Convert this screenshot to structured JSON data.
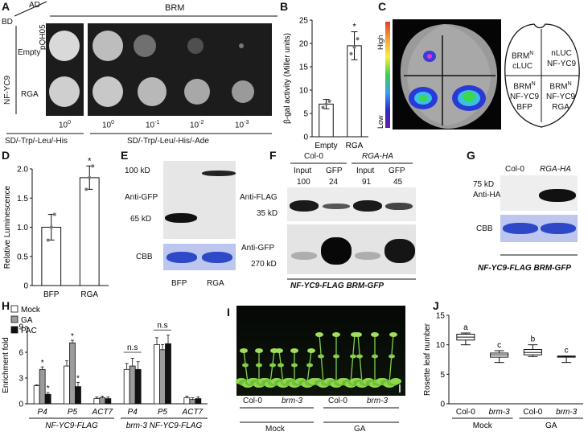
{
  "panels": {
    "A": {
      "letter": "A",
      "ad_label": "AD",
      "bd_label": "BD",
      "pqh05_label": "pQH05",
      "brm_label": "BRM",
      "nfyc9_label": "NF-YC9",
      "rows": [
        "Empty",
        "RGA"
      ],
      "dilutions": [
        "10",
        "10",
        "10",
        "10",
        "10"
      ],
      "dilution_exps": [
        "0",
        "0",
        "-1",
        "-2",
        "-3"
      ],
      "media": [
        "SD/-Trp/-Leu/-His",
        "SD/-Trp/-Leu/-His/-Ade"
      ]
    },
    "B": {
      "letter": "B",
      "chart_data": {
        "type": "bar",
        "categories": [
          "Empty",
          "RGA"
        ],
        "values": [
          7,
          19.5
        ],
        "errors": [
          1,
          3
        ],
        "points": [
          [
            6.3,
            7.0,
            7.6
          ],
          [
            17.8,
            19.2,
            21.0
          ]
        ],
        "ylabel": "β-gal activity (Miller units)",
        "ylim": [
          0,
          25
        ],
        "yticks": [
          0,
          5,
          10,
          15,
          20,
          25
        ],
        "significance": [
          "",
          "*"
        ]
      }
    },
    "C": {
      "letter": "C",
      "scale_high": "High",
      "scale_low": "Low",
      "map": {
        "tl": [
          "BRM",
          "N",
          "cLUC"
        ],
        "tr": [
          "nLUC",
          "NF-YC9"
        ],
        "bl": [
          "BRM",
          "N",
          "NF-YC9",
          "BFP"
        ],
        "br": [
          "BRM",
          "N",
          "NF-YC9",
          "RGA"
        ]
      }
    },
    "D": {
      "letter": "D",
      "chart_data": {
        "type": "bar",
        "categories": [
          "BFP",
          "RGA"
        ],
        "values": [
          1.0,
          1.85
        ],
        "errors": [
          0.22,
          0.2
        ],
        "points": [
          [
            0.78,
            1.0,
            1.22
          ],
          [
            1.65,
            1.85,
            2.05
          ]
        ],
        "ylabel": "Relative Luminescence",
        "ylim": [
          0,
          2.0
        ],
        "yticks": [
          0,
          0.5,
          1.0,
          1.5,
          2.0
        ],
        "ytick_labels": [
          "0",
          "0.5",
          "1.0",
          "1.5",
          "2.0"
        ],
        "significance": [
          "",
          "*"
        ]
      }
    },
    "E": {
      "letter": "E",
      "mw_top": "100 kD",
      "mw_bottom": "65 kD",
      "antibody": "Anti-GFP",
      "cbb": "CBB",
      "lanes": [
        "BFP",
        "RGA"
      ]
    },
    "F": {
      "letter": "F",
      "groups": [
        "Col-0",
        "RGA-HA"
      ],
      "lanes": [
        "Input",
        "GFP",
        "Input",
        "GFP"
      ],
      "quant": [
        "100",
        "24",
        "91",
        "45"
      ],
      "flag_label": "Anti-FLAG",
      "flag_mw": "35 kD",
      "gfp_label": "Anti-GFP",
      "gfp_mw": "270 kD",
      "genotype": "NF-YC9-FLAG BRM-GFP"
    },
    "G": {
      "letter": "G",
      "groups": [
        "Col-0",
        "RGA-HA"
      ],
      "mw": "75 kD",
      "antibody": "Anti-HA",
      "cbb": "CBB",
      "genotype": "NF-YC9-FLAG BRM-GFP"
    },
    "H": {
      "letter": "H",
      "chart_data": {
        "type": "bar",
        "ylabel": "Enrichment fold",
        "ylim": [
          0,
          9
        ],
        "yticks": [
          0,
          3,
          6,
          9
        ],
        "categories": [
          "P4",
          "P5",
          "ACT7",
          "P4",
          "P5",
          "ACT7"
        ],
        "series": [
          {
            "name": "Mock",
            "values": [
              2.1,
              4.4,
              0.6,
              4.0,
              6.9,
              0.7
            ],
            "errors": [
              0.1,
              0.6,
              0.2,
              0.7,
              0.8,
              0.2
            ],
            "color": "#ffffff"
          },
          {
            "name": "GA",
            "values": [
              4.0,
              7.1,
              0.7,
              4.4,
              6.3,
              0.5
            ],
            "errors": [
              0.3,
              0.3,
              0.2,
              0.9,
              0.6,
              0.2
            ],
            "color": "#9b9b9b"
          },
          {
            "name": "PAC",
            "values": [
              1.1,
              2.0,
              0.6,
              4.0,
              7.0,
              0.6
            ],
            "errors": [
              0.2,
              0.5,
              0.2,
              0.9,
              1.0,
              0.2
            ],
            "color": "#111111"
          }
        ],
        "stars": [
          [
            "",
            "*",
            "*"
          ],
          [
            "",
            "*",
            "*"
          ],
          [
            "",
            "",
            ""
          ],
          [
            "",
            "",
            ""
          ],
          [
            "",
            "",
            ""
          ],
          [
            "",
            "",
            ""
          ]
        ],
        "ns_labels": [
          "n.s",
          "n.s"
        ],
        "group_labels": [
          "NF-YC9-FLAG",
          "brm-3 NF-YC9-FLAG"
        ]
      }
    },
    "I": {
      "letter": "I",
      "genotypes": [
        "Col-0",
        "brm-3",
        "Col-0",
        "brm-3"
      ],
      "treatments": [
        "Mock",
        "GA"
      ]
    },
    "J": {
      "letter": "J",
      "chart_data": {
        "type": "box",
        "ylabel": "Rosette leaf number",
        "ylim": [
          0,
          15
        ],
        "yticks": [
          0,
          5,
          10,
          15
        ],
        "categories": [
          "Col-0",
          "brm-3",
          "Col-0",
          "brm-3"
        ],
        "boxes": [
          {
            "min": 10.0,
            "q1": 10.8,
            "median": 11.3,
            "q3": 11.8,
            "max": 12.0
          },
          {
            "min": 7.0,
            "q1": 7.9,
            "median": 8.3,
            "q3": 8.6,
            "max": 9.0
          },
          {
            "min": 8.0,
            "q1": 8.3,
            "median": 8.7,
            "q3": 9.2,
            "max": 10.0
          },
          {
            "min": 7.0,
            "q1": 7.9,
            "median": 8.0,
            "q3": 8.1,
            "max": 8.1
          }
        ],
        "letters": [
          "a",
          "c",
          "b",
          "c"
        ],
        "treatments": [
          "Mock",
          "GA"
        ]
      }
    }
  }
}
